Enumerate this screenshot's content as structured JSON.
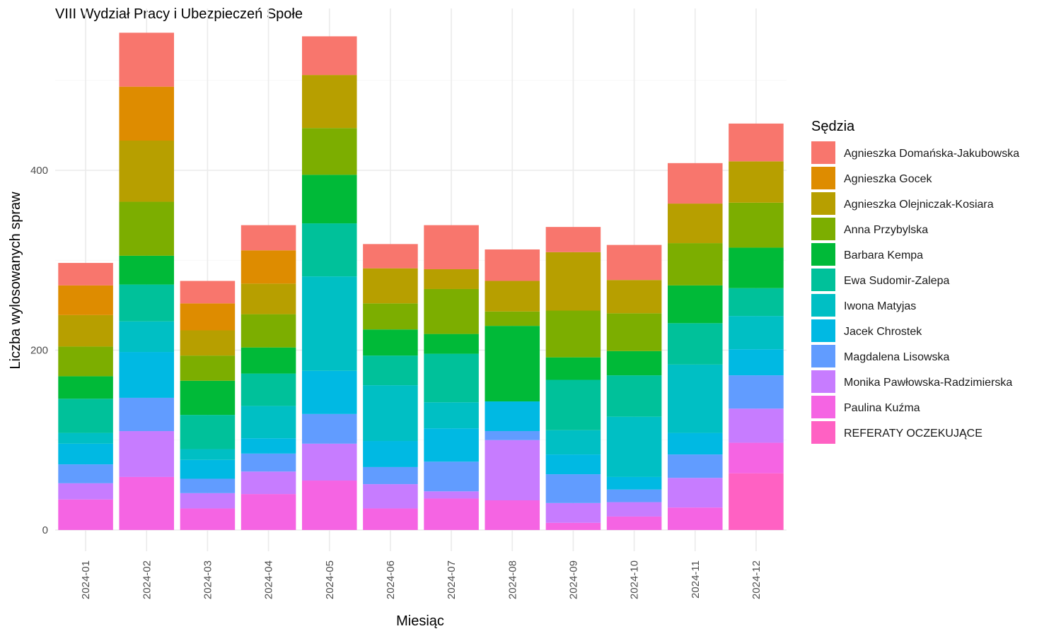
{
  "chart_data": {
    "type": "bar",
    "stacked": true,
    "title": "VIII Wydział Pracy i Ubezpieczeń Społe",
    "xlabel": "Miesiąc",
    "ylabel": "Liczba wylosowanych spraw",
    "ylim": [
      0,
      560
    ],
    "yticks": [
      0,
      200,
      400
    ],
    "grid": true,
    "legend_title": "Sędzia",
    "legend_position": "right",
    "categories": [
      "2024-01",
      "2024-02",
      "2024-03",
      "2024-04",
      "2024-05",
      "2024-06",
      "2024-07",
      "2024-08",
      "2024-09",
      "2024-10",
      "2024-11",
      "2024-12"
    ],
    "series": [
      {
        "name": "REFERATY OCZEKUJĄCE",
        "color": "#FF61C3",
        "values": [
          0,
          0,
          0,
          0,
          0,
          0,
          0,
          0,
          0,
          0,
          0,
          63
        ]
      },
      {
        "name": "Paulina Kuźma",
        "color": "#F564E3",
        "values": [
          34,
          59,
          24,
          40,
          55,
          24,
          35,
          33,
          8,
          15,
          25,
          34
        ]
      },
      {
        "name": "Monika Pawłowska-Radzimierska",
        "color": "#C77CFF",
        "values": [
          18,
          51,
          17,
          25,
          41,
          27,
          8,
          67,
          22,
          16,
          33,
          38
        ]
      },
      {
        "name": "Magdalena Lisowska",
        "color": "#619CFF",
        "values": [
          21,
          37,
          16,
          20,
          33,
          19,
          33,
          10,
          32,
          14,
          26,
          37
        ]
      },
      {
        "name": "Jacek Chrostek",
        "color": "#00B9E3",
        "values": [
          23,
          51,
          21,
          17,
          48,
          29,
          37,
          33,
          22,
          14,
          24,
          29
        ]
      },
      {
        "name": "Iwona Matyjas",
        "color": "#00BFC4",
        "values": [
          12,
          34,
          12,
          36,
          105,
          62,
          29,
          0,
          27,
          67,
          76,
          37
        ]
      },
      {
        "name": "Ewa Sudomir-Zalepa",
        "color": "#00C19A",
        "values": [
          38,
          41,
          38,
          36,
          59,
          33,
          54,
          0,
          56,
          46,
          46,
          31
        ]
      },
      {
        "name": "Barbara Kempa",
        "color": "#00BA38",
        "values": [
          25,
          32,
          38,
          29,
          54,
          29,
          22,
          84,
          25,
          27,
          42,
          45
        ]
      },
      {
        "name": "Anna Przybylska",
        "color": "#7CAE00",
        "values": [
          33,
          60,
          28,
          37,
          52,
          29,
          50,
          16,
          52,
          42,
          47,
          50
        ]
      },
      {
        "name": "Agnieszka Olejniczak-Kosiara",
        "color": "#B79F00",
        "values": [
          35,
          68,
          28,
          34,
          59,
          39,
          22,
          34,
          65,
          37,
          44,
          46
        ]
      },
      {
        "name": "Agnieszka Gocek",
        "color": "#DE8C00",
        "values": [
          33,
          60,
          30,
          37,
          0,
          0,
          0,
          0,
          0,
          0,
          0,
          0
        ]
      },
      {
        "name": "Agnieszka Domańska-Jakubowska",
        "color": "#F8766D",
        "values": [
          25,
          60,
          25,
          28,
          43,
          27,
          49,
          35,
          28,
          39,
          45,
          42
        ]
      }
    ]
  }
}
